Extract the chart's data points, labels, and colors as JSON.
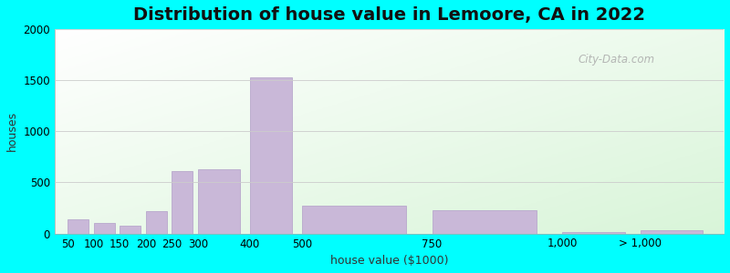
{
  "title": "Distribution of house value in Lemoore, CA in 2022",
  "xlabel": "house value ($1000)",
  "ylabel": "houses",
  "bar_labels": [
    "50",
    "100",
    "150",
    "200",
    "250",
    "300",
    "400",
    "500",
    "750",
    "1,000",
    "> 1,000"
  ],
  "bar_values": [
    140,
    100,
    75,
    215,
    610,
    625,
    1530,
    270,
    230,
    15,
    30
  ],
  "bar_color": "#c9b8d8",
  "bar_edge_color": "#b8a8cc",
  "outer_background": "#00ffff",
  "ylim": [
    0,
    2000
  ],
  "yticks": [
    0,
    500,
    1000,
    1500,
    2000
  ],
  "title_fontsize": 14,
  "axis_label_fontsize": 9,
  "tick_fontsize": 8.5,
  "watermark_text": "City-Data.com",
  "bar_positions": [
    50,
    100,
    150,
    200,
    250,
    300,
    400,
    500,
    750,
    1000,
    1150
  ],
  "bar_widths": [
    40,
    40,
    40,
    40,
    40,
    80,
    80,
    200,
    200,
    120,
    120
  ],
  "xlim": [
    25,
    1310
  ],
  "xtick_positions": [
    50,
    100,
    150,
    200,
    250,
    300,
    400,
    500,
    750,
    1000,
    1150
  ],
  "xtick_labels": [
    "50",
    "100",
    "150",
    "200",
    "250",
    "300",
    "400",
    "500",
    "750",
    "1,000",
    "> 1,000"
  ]
}
